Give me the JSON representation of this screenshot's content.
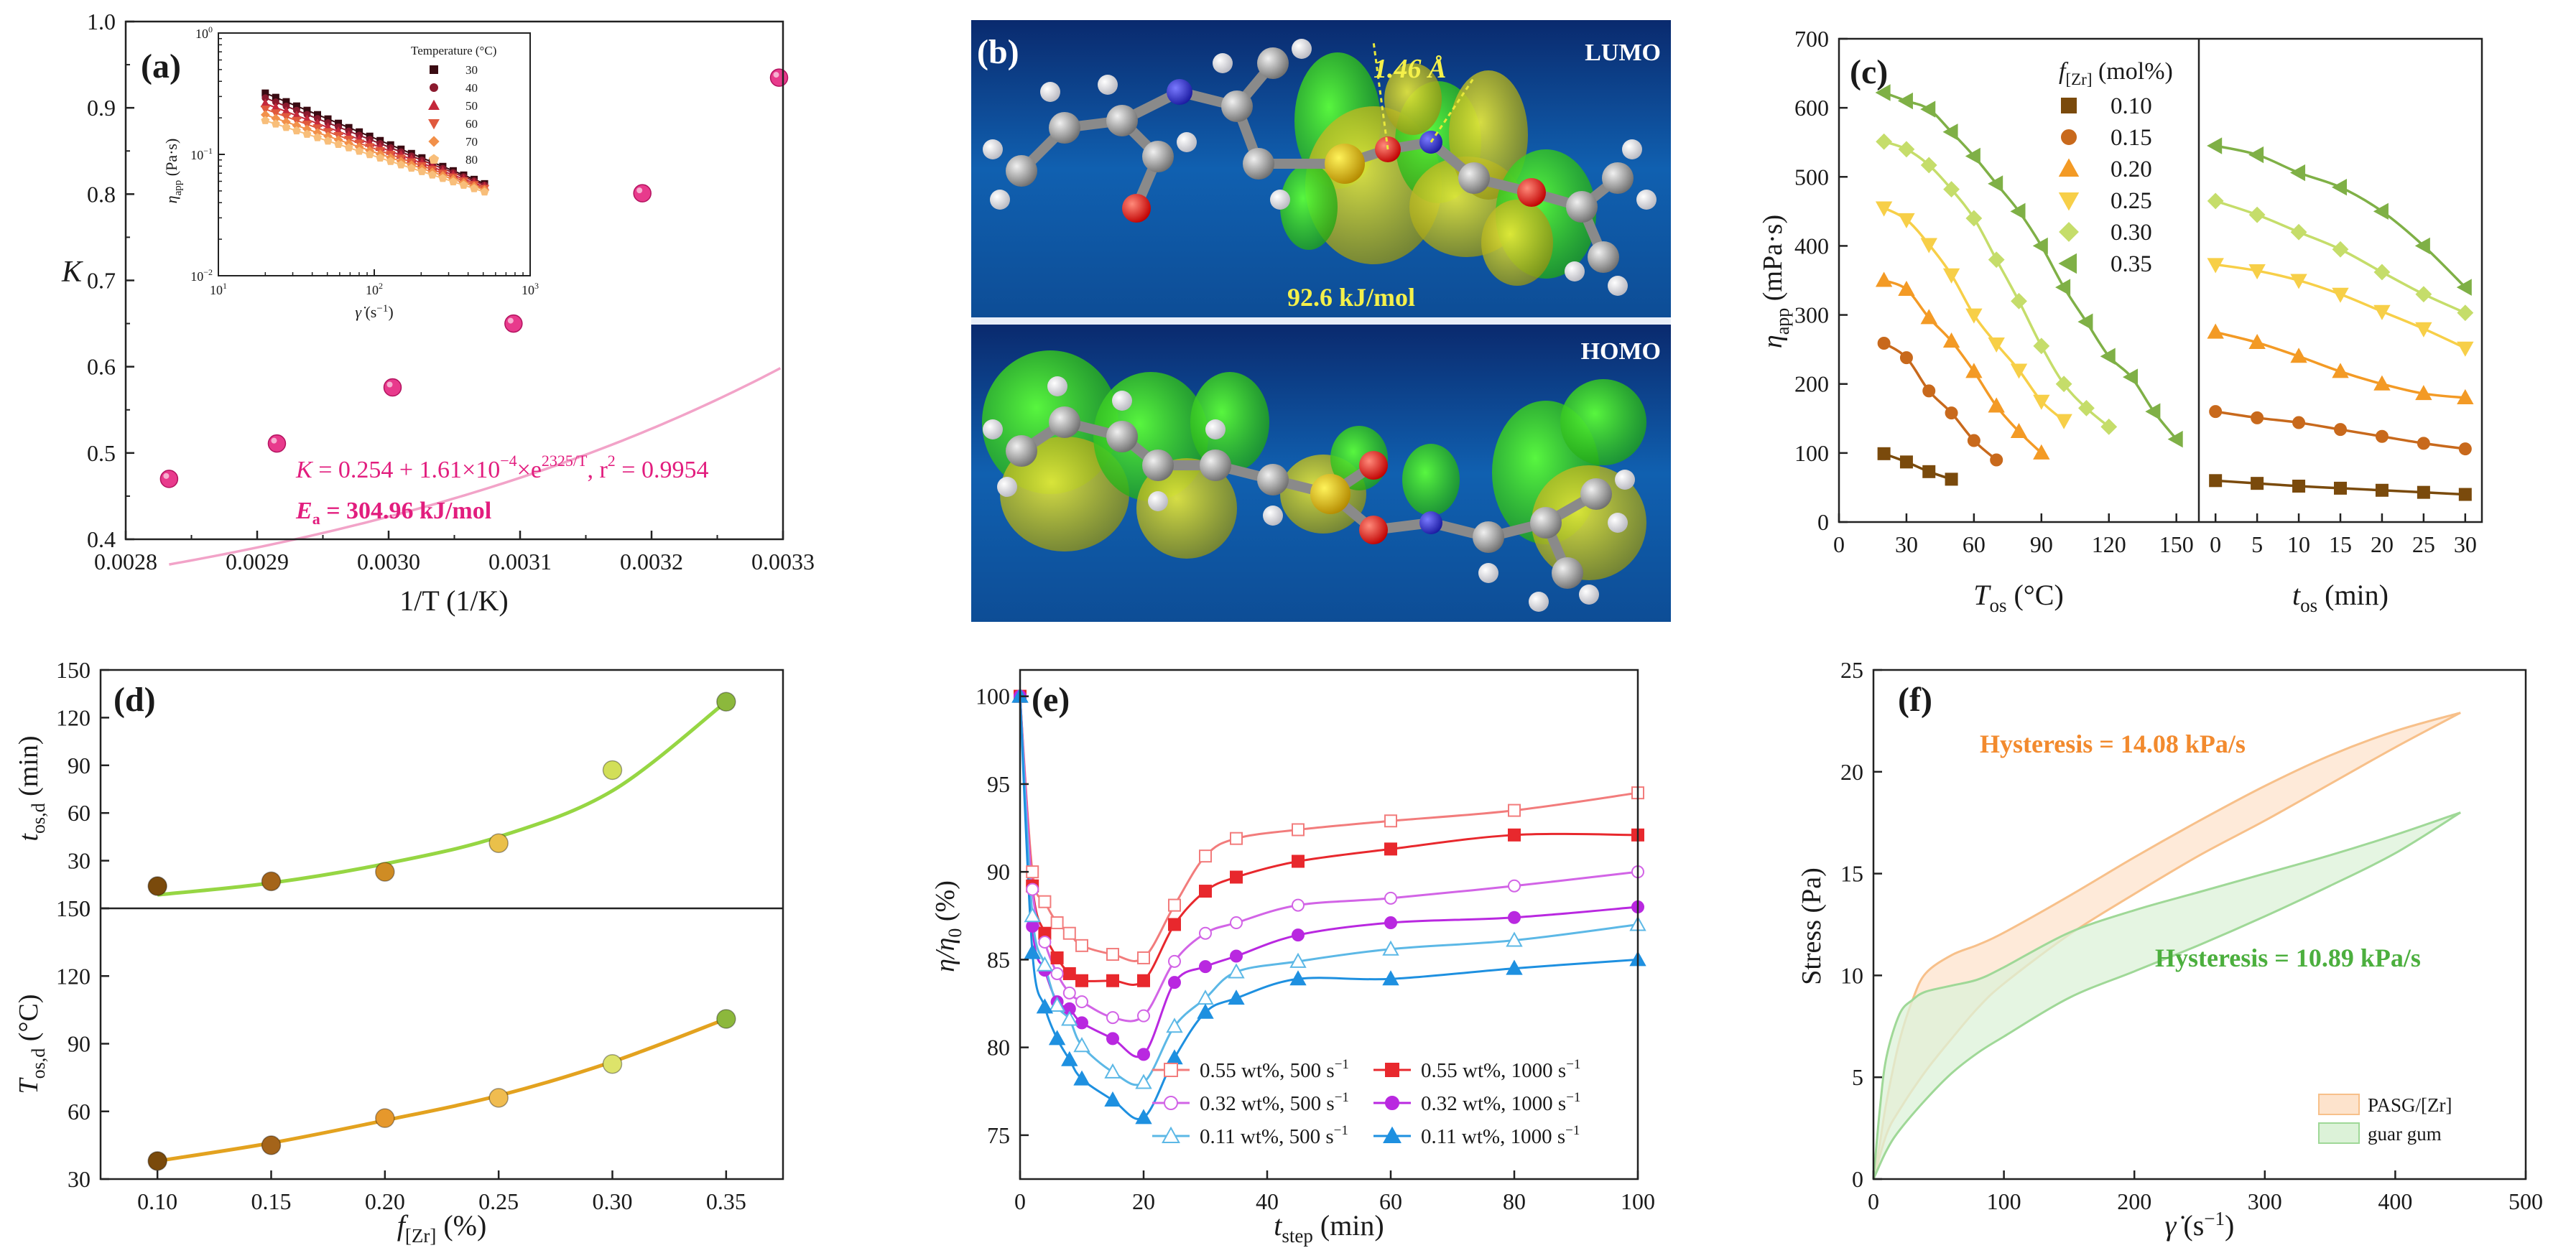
{
  "chart_data": [
    {
      "id": "a",
      "type": "scatter",
      "label": "(a)",
      "xlabel": "1/T (1/K)",
      "ylabel": "K",
      "xlim": [
        0.0028,
        0.0033
      ],
      "ylim": [
        0.4,
        1.0
      ],
      "xticks": [
        "0.0028",
        "0.0029",
        "0.0030",
        "0.0031",
        "0.0032",
        "0.0033"
      ],
      "yticks": [
        "0.4",
        "0.5",
        "0.6",
        "0.7",
        "0.8",
        "0.9",
        "1.0"
      ],
      "x": [
        0.002833,
        0.002915,
        0.003003,
        0.003095,
        0.003193,
        0.003297
      ],
      "y": [
        0.47,
        0.511,
        0.576,
        0.65,
        0.801,
        0.935
      ],
      "fit": {
        "a": 0.254,
        "b": 0.000161,
        "c": 2325
      },
      "eq_parts": [
        "K",
        " = 0.254 + 1.61×10",
        "−4",
        "×e",
        "2325/T",
        ", r",
        "2",
        " = 0.9954"
      ],
      "ea_parts": [
        "E",
        "a",
        " = 304.96 kJ/mol"
      ],
      "point_color": "#e83a8c",
      "line_color": "#f2a3c8",
      "text_color": "#e21d7e",
      "inset": {
        "legend_title": "Temperature (°C)",
        "ylabel_main": "η",
        "ylabel_sub": "app",
        "ylabel_unit": " (Pa·s)",
        "xlabel_main": "γ̇",
        "xlabel_unit": " (s",
        "xlabel_exp": "−1",
        "xlabel_end": ")",
        "yticks": [
          [
            "10",
            "−2"
          ],
          [
            "10",
            "−1"
          ],
          [
            "10",
            "0"
          ]
        ],
        "xticks": [
          [
            "10",
            "1"
          ],
          [
            "10",
            "2"
          ],
          [
            "10",
            "3"
          ]
        ],
        "xlim_log": [
          1,
          3
        ],
        "ylim_log": [
          -2,
          0
        ],
        "rate_range": [
          20,
          510
        ],
        "series": [
          {
            "name": "30",
            "marker": "square",
            "color": "#3a0b12",
            "eta0": 0.32,
            "n": 0.531
          },
          {
            "name": "40",
            "marker": "circle",
            "color": "#8b1a2e",
            "eta0": 0.292,
            "n": 0.511
          },
          {
            "name": "50",
            "marker": "triangle-up",
            "color": "#c4283a",
            "eta0": 0.262,
            "n": 0.488
          },
          {
            "name": "60",
            "marker": "triangle-down",
            "color": "#e0593d",
            "eta0": 0.236,
            "n": 0.465
          },
          {
            "name": "70",
            "marker": "diamond",
            "color": "#f2904a",
            "eta0": 0.212,
            "n": 0.44
          },
          {
            "name": "80",
            "marker": "pentagon",
            "color": "#f8be7a",
            "eta0": 0.19,
            "n": 0.418
          }
        ]
      }
    },
    {
      "id": "b",
      "type": "image",
      "label": "(b)",
      "lumo_label": "LUMO",
      "homo_label": "HOMO",
      "bond_label": "1.46 Å",
      "energy_label": "92.6 kJ/mol"
    },
    {
      "id": "c",
      "type": "line",
      "label": "(c)",
      "ylabel_main": "η",
      "ylabel_sub": "app",
      "ylabel_unit": " (mPa·s)",
      "left_xlabel_main": "T",
      "left_xlabel_sub": "os",
      "left_xlabel_unit": " (°C)",
      "right_xlabel_main": "t",
      "right_xlabel_sub": "os",
      "right_xlabel_unit": " (min)",
      "ylim": [
        0,
        700
      ],
      "yticks": [
        "0",
        "100",
        "200",
        "300",
        "400",
        "500",
        "600",
        "700"
      ],
      "left_xlim": [
        0,
        160
      ],
      "left_xticks": [
        "0",
        "30",
        "60",
        "90",
        "120",
        "150"
      ],
      "right_xlim": [
        -2,
        32
      ],
      "right_xticks": [
        "0",
        "5",
        "10",
        "15",
        "20",
        "25",
        "30"
      ],
      "legend_title_main": "f",
      "legend_title_sub": "[Zr]",
      "legend_title_unit": " (mol%)",
      "series": [
        {
          "name": "0.10",
          "marker": "square",
          "color": "#7a4a0c",
          "left_x": [
            20,
            30,
            40,
            50
          ],
          "left_y": [
            99,
            87,
            73,
            62
          ],
          "right_x": [
            0,
            5,
            10,
            15,
            20,
            25,
            30
          ],
          "right_y": [
            60,
            56,
            52,
            49,
            46,
            43,
            40
          ]
        },
        {
          "name": "0.15",
          "marker": "circle",
          "color": "#c8691c",
          "left_x": [
            20,
            30,
            40,
            50,
            60,
            70
          ],
          "left_y": [
            259,
            238,
            190,
            158,
            118,
            90
          ],
          "right_x": [
            0,
            5,
            10,
            15,
            20,
            25,
            30
          ],
          "right_y": [
            160,
            151,
            144,
            134,
            124,
            114,
            106
          ]
        },
        {
          "name": "0.20",
          "marker": "triangle-up",
          "color": "#f39a25",
          "left_x": [
            20,
            30,
            40,
            50,
            60,
            70,
            80,
            90
          ],
          "left_y": [
            350,
            337,
            296,
            262,
            218,
            168,
            131,
            100
          ],
          "right_x": [
            0,
            5,
            10,
            15,
            20,
            25,
            30
          ],
          "right_y": [
            275,
            260,
            240,
            218,
            200,
            186,
            180
          ]
        },
        {
          "name": "0.25",
          "marker": "triangle-down",
          "color": "#f7cf48",
          "left_x": [
            20,
            30,
            40,
            50,
            60,
            70,
            80,
            90,
            100
          ],
          "left_y": [
            455,
            438,
            402,
            358,
            300,
            258,
            220,
            175,
            147
          ],
          "right_x": [
            0,
            5,
            10,
            15,
            20,
            25,
            30
          ],
          "right_y": [
            373,
            364,
            350,
            330,
            305,
            280,
            252
          ]
        },
        {
          "name": "0.30",
          "marker": "diamond",
          "color": "#c5dd6a",
          "left_x": [
            20,
            30,
            40,
            50,
            60,
            70,
            80,
            90,
            100,
            110,
            120
          ],
          "left_y": [
            551,
            540,
            517,
            482,
            440,
            380,
            320,
            255,
            200,
            165,
            138
          ],
          "right_x": [
            0,
            5,
            10,
            15,
            20,
            25,
            30
          ],
          "right_y": [
            465,
            445,
            420,
            395,
            362,
            330,
            303
          ]
        },
        {
          "name": "0.35",
          "marker": "triangle-left",
          "color": "#7fb046",
          "left_x": [
            20,
            30,
            40,
            50,
            60,
            70,
            80,
            90,
            100,
            110,
            120,
            130,
            140,
            150
          ],
          "left_y": [
            622,
            610,
            598,
            565,
            530,
            490,
            450,
            400,
            340,
            290,
            240,
            210,
            160,
            120
          ],
          "right_x": [
            0,
            5,
            10,
            15,
            20,
            25,
            30
          ],
          "right_y": [
            545,
            532,
            506,
            485,
            450,
            400,
            340
          ]
        }
      ]
    },
    {
      "id": "d",
      "type": "scatter",
      "label": "(d)",
      "xlabel_main": "f",
      "xlabel_sub": "[Zr]",
      "xlabel_unit": " (%)",
      "xlim": [
        0.075,
        0.375
      ],
      "xticks": [
        "0.10",
        "0.15",
        "0.20",
        "0.25",
        "0.30",
        "0.35"
      ],
      "top": {
        "ylabel_main": "t",
        "ylabel_sub": "os,d",
        "ylabel_unit": " (min)",
        "ylim": [
          0,
          150
        ],
        "yticks": [
          "0",
          "30",
          "60",
          "90",
          "120",
          "150"
        ],
        "x": [
          0.1,
          0.15,
          0.2,
          0.25,
          0.3,
          0.35
        ],
        "y": [
          14,
          17,
          23,
          41,
          87,
          130
        ],
        "fit_y": [
          8.5,
          16,
          28,
          45,
          74,
          130
        ],
        "colors": [
          "#7a4a0c",
          "#a4641a",
          "#cf8c24",
          "#eac04a",
          "#d2df58",
          "#8cb83c"
        ],
        "line_color": "#96d643"
      },
      "bottom": {
        "ylabel_main": "T",
        "ylabel_sub": "os,d",
        "ylabel_unit": " (°C)",
        "ylim": [
          30,
          150
        ],
        "yticks": [
          "30",
          "60",
          "90",
          "120",
          "150"
        ],
        "x": [
          0.1,
          0.15,
          0.2,
          0.25,
          0.3,
          0.35
        ],
        "y": [
          38,
          45,
          57,
          66,
          81,
          101
        ],
        "fit_y": [
          38,
          46,
          56,
          67,
          82,
          101
        ],
        "colors": [
          "#7a4a0c",
          "#a4641a",
          "#e6982c",
          "#f0bc50",
          "#dde36a",
          "#8cb83c"
        ],
        "line_color": "#e3a21f"
      }
    },
    {
      "id": "e",
      "type": "line",
      "label": "(e)",
      "ylabel_main": "η",
      "ylabel_mid": "/η",
      "ylabel_sub": "0",
      "ylabel_unit": " (%)",
      "xlabel_main": "t",
      "xlabel_sub": "step",
      "xlabel_unit": " (min)",
      "xlim": [
        0,
        100
      ],
      "ylim": [
        72.5,
        101.5
      ],
      "xticks": [
        "0",
        "20",
        "40",
        "60",
        "80",
        "100"
      ],
      "yticks": [
        "75",
        "80",
        "85",
        "90",
        "95",
        "100"
      ],
      "series": [
        {
          "name": "0.55 wt%, 500 s",
          "exp": "−1",
          "marker": "square",
          "filled": false,
          "color": "#f27c7c",
          "x": [
            0,
            2,
            4,
            6,
            8,
            10,
            15,
            20,
            25,
            30,
            35,
            45,
            60,
            80,
            100
          ],
          "y": [
            100,
            90,
            88.3,
            87.1,
            86.5,
            85.8,
            85.3,
            85.1,
            88.1,
            90.9,
            91.9,
            92.4,
            92.9,
            93.5,
            94.5
          ]
        },
        {
          "name": "0.55 wt%, 1000 s",
          "exp": "−1",
          "marker": "square",
          "filled": true,
          "color": "#e8282d",
          "x": [
            0,
            2,
            4,
            6,
            8,
            10,
            15,
            20,
            25,
            30,
            35,
            45,
            60,
            80,
            100
          ],
          "y": [
            100,
            89.2,
            86.5,
            85.1,
            84.2,
            83.8,
            83.8,
            83.8,
            87.0,
            88.9,
            89.7,
            90.6,
            91.3,
            92.1,
            92.1
          ]
        },
        {
          "name": "0.32 wt%, 500 s",
          "exp": "−1",
          "marker": "circle",
          "filled": false,
          "color": "#d264e6",
          "x": [
            0,
            2,
            4,
            6,
            8,
            10,
            15,
            20,
            25,
            30,
            35,
            45,
            60,
            80,
            100
          ],
          "y": [
            100,
            89,
            86.0,
            84.2,
            83.1,
            82.6,
            81.7,
            81.8,
            84.9,
            86.5,
            87.1,
            88.1,
            88.5,
            89.2,
            90.0
          ]
        },
        {
          "name": "0.32 wt%, 1000 s",
          "exp": "−1",
          "marker": "circle",
          "filled": true,
          "color": "#b928e0",
          "x": [
            0,
            2,
            4,
            6,
            8,
            10,
            15,
            20,
            25,
            30,
            35,
            45,
            60,
            80,
            100
          ],
          "y": [
            100,
            86.9,
            84.4,
            82.6,
            82.2,
            81.4,
            80.5,
            79.6,
            83.7,
            84.6,
            85.2,
            86.4,
            87.1,
            87.4,
            88.0
          ]
        },
        {
          "name": "0.11 wt%, 500 s",
          "exp": "−1",
          "marker": "triangle-up",
          "filled": false,
          "color": "#5cb8e6",
          "x": [
            0,
            2,
            4,
            6,
            8,
            10,
            15,
            20,
            25,
            30,
            35,
            45,
            60,
            80,
            100
          ],
          "y": [
            100,
            87.5,
            84.7,
            82.4,
            81.6,
            80.1,
            78.6,
            78.0,
            81.2,
            82.8,
            84.3,
            84.9,
            85.6,
            86.1,
            87.0
          ]
        },
        {
          "name": "0.11 wt%, 1000 s",
          "exp": "−1",
          "marker": "triangle-up",
          "filled": true,
          "color": "#1e90e0",
          "x": [
            0,
            2,
            4,
            6,
            8,
            10,
            15,
            20,
            25,
            30,
            35,
            45,
            60,
            80,
            100
          ],
          "y": [
            100,
            85.4,
            82.3,
            80.5,
            79.3,
            78.2,
            77.0,
            76.0,
            79.4,
            82.0,
            82.8,
            83.9,
            83.9,
            84.5,
            85.0
          ]
        }
      ]
    },
    {
      "id": "f",
      "type": "area",
      "label": "(f)",
      "xlabel_main": "γ̇",
      "xlabel_unit": " (s",
      "xlabel_exp": "−1",
      "xlabel_end": ")",
      "ylabel": "Stress (Pa)",
      "xlim": [
        0,
        500
      ],
      "ylim": [
        0,
        25
      ],
      "xticks": [
        "0",
        "100",
        "200",
        "300",
        "400",
        "500"
      ],
      "yticks": [
        "0",
        "5",
        "10",
        "15",
        "20",
        "25"
      ],
      "annotations": [
        {
          "text": "Hysteresis = 14.08 kPa/s",
          "color": "#f28a2e"
        },
        {
          "text": "Hysteresis = 10.89 kPa/s",
          "color": "#4caf3e"
        }
      ],
      "series": [
        {
          "name": "PASG/[Zr]",
          "line": "#f7c08a",
          "fill": "#fde3cc",
          "up_x": [
            0,
            5,
            10,
            20,
            30,
            40,
            60,
            80,
            100,
            150,
            200,
            250,
            300,
            350,
            400,
            450
          ],
          "up_y": [
            0,
            1.8,
            3.8,
            6.8,
            8.8,
            10.1,
            11.0,
            11.5,
            12.1,
            13.9,
            15.8,
            17.6,
            19.3,
            20.8,
            22.0,
            22.9
          ],
          "down_x": [
            450,
            400,
            350,
            300,
            250,
            200,
            150,
            100,
            80,
            60,
            40,
            20,
            10,
            0
          ],
          "down_y": [
            22.9,
            21.2,
            19.4,
            17.6,
            15.9,
            14.0,
            12.0,
            9.6,
            8.4,
            6.9,
            5.3,
            3.4,
            2.2,
            0
          ]
        },
        {
          "name": "guar gum",
          "line": "#9fd897",
          "fill": "#dcf2d8",
          "up_x": [
            0,
            5,
            10,
            20,
            30,
            40,
            60,
            80,
            100,
            150,
            200,
            250,
            300,
            350,
            400,
            450
          ],
          "up_y": [
            0,
            3.5,
            6.0,
            8.1,
            8.8,
            9.2,
            9.5,
            9.8,
            10.4,
            12.1,
            13.2,
            14.1,
            15.0,
            15.9,
            16.9,
            18.0
          ],
          "down_x": [
            450,
            400,
            350,
            300,
            250,
            200,
            150,
            100,
            80,
            60,
            40,
            20,
            10,
            0
          ],
          "down_y": [
            18.0,
            16.0,
            14.4,
            12.9,
            11.5,
            10.2,
            8.9,
            7.0,
            6.2,
            5.2,
            3.9,
            2.4,
            1.4,
            0
          ]
        }
      ]
    }
  ]
}
